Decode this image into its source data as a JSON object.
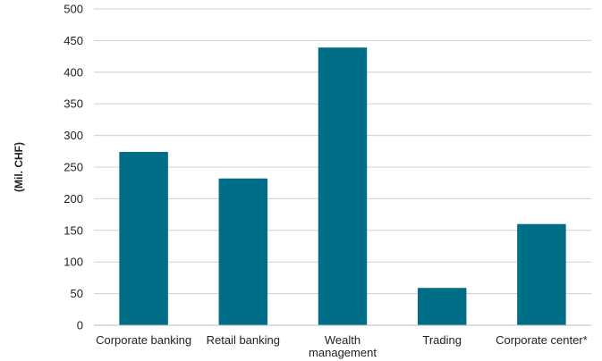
{
  "chart_data": {
    "type": "bar",
    "title": "",
    "xlabel": "",
    "ylabel": "(Mil. CHF)",
    "categories": [
      [
        "Corporate banking"
      ],
      [
        "Retail banking"
      ],
      [
        "Wealth",
        "management"
      ],
      [
        "Trading"
      ],
      [
        "Corporate center*"
      ]
    ],
    "values": [
      274,
      232,
      439,
      59,
      160
    ],
    "ylim": [
      0,
      500
    ],
    "yticks": [
      0,
      50,
      100,
      150,
      200,
      250,
      300,
      350,
      400,
      450,
      500
    ],
    "grid": true,
    "bar_color": "#006e87",
    "grid_color": "#d0d0d0"
  }
}
